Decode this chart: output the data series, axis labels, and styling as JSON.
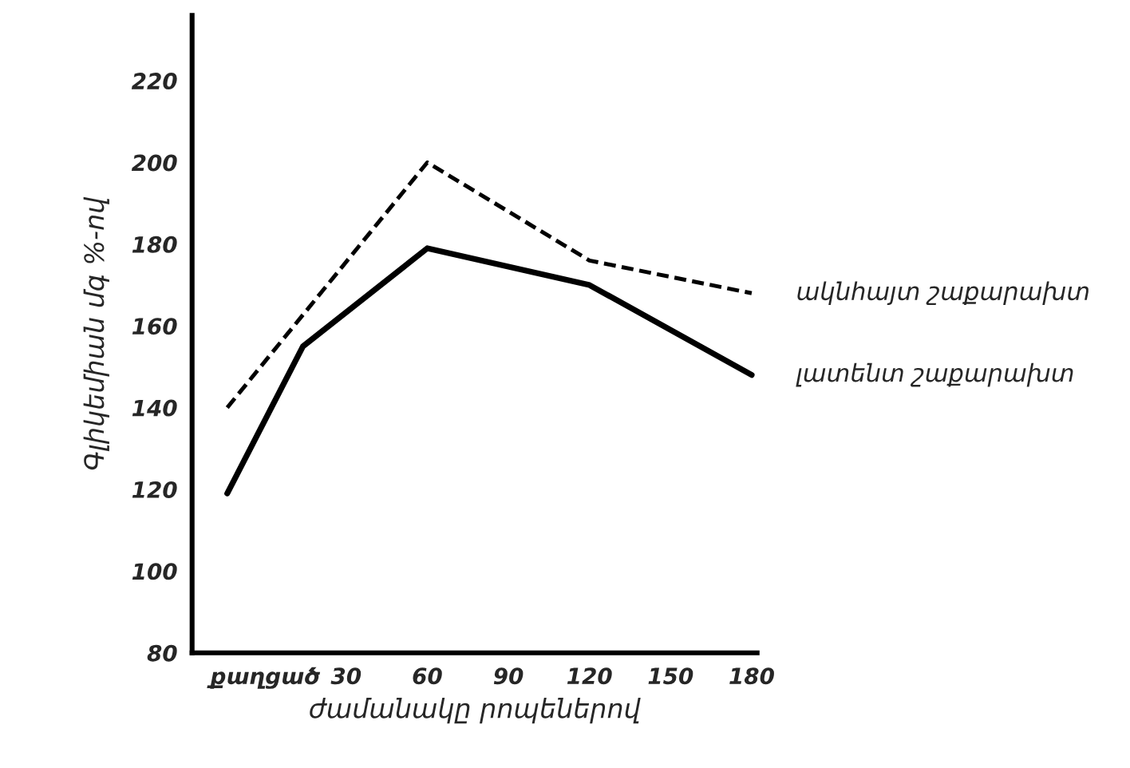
{
  "chart_data": {
    "type": "line",
    "xlabel": "ժամանակը րոպեներով",
    "ylabel": "Գլիկեմիան մգ %-ով",
    "xlim": [
      -27,
      182
    ],
    "ylim": [
      80,
      236
    ],
    "xticks": [
      {
        "value": 0,
        "label": "քաղցած"
      },
      30,
      60,
      90,
      120,
      150,
      180
    ],
    "yticks": [
      80,
      100,
      120,
      140,
      160,
      180,
      200,
      220
    ],
    "grid": false,
    "series": [
      {
        "name": "ակնհայտ շաքարախտ",
        "color": "#000000",
        "line_style": "dashed",
        "x": [
          -14,
          60,
          120,
          180
        ],
        "values": [
          140,
          200,
          176,
          168
        ]
      },
      {
        "name": "լատենտ շաքարախտ",
        "color": "#000000",
        "line_style": "solid",
        "x": [
          -14,
          14,
          60,
          120,
          180
        ],
        "values": [
          119,
          155,
          179,
          170,
          148
        ]
      }
    ]
  }
}
